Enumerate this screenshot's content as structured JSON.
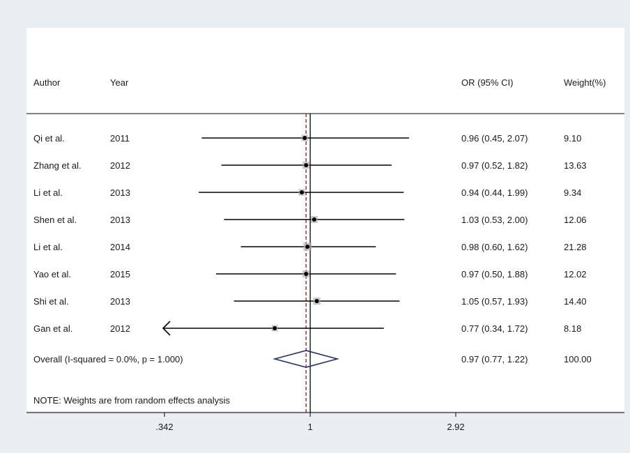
{
  "headers": {
    "author": "Author",
    "year": "Year",
    "or": "OR (95% CI)",
    "weight": "Weight(%)"
  },
  "studies": [
    {
      "author": "Qi et al.",
      "year": "2011",
      "or_text": "0.96 (0.45, 2.07)",
      "weight": "9.10"
    },
    {
      "author": "Zhang et al.",
      "year": "2012",
      "or_text": "0.97 (0.52, 1.82)",
      "weight": "13.63"
    },
    {
      "author": "Li et al.",
      "year": "2013",
      "or_text": "0.94 (0.44, 1.99)",
      "weight": "9.34"
    },
    {
      "author": "Shen et al.",
      "year": "2013",
      "or_text": "1.03 (0.53, 2.00)",
      "weight": "12.06"
    },
    {
      "author": "Li et al.",
      "year": "2014",
      "or_text": "0.98 (0.60, 1.62)",
      "weight": "21.28"
    },
    {
      "author": "Yao et al.",
      "year": "2015",
      "or_text": "0.97 (0.50, 1.88)",
      "weight": "12.02"
    },
    {
      "author": "Shi et al.",
      "year": "2013",
      "or_text": "1.05 (0.57, 1.93)",
      "weight": "14.40"
    },
    {
      "author": "Gan et al.",
      "year": "2012",
      "or_text": "0.77 (0.34, 1.72)",
      "weight": "8.18"
    }
  ],
  "overall": {
    "label": "Overall  (I-squared = 0.0%, p = 1.000)",
    "or_text": "0.97 (0.77, 1.22)",
    "weight": "100.00"
  },
  "note": "NOTE: Weights are from random effects analysis",
  "colors": {
    "background": "#e9eef3",
    "panel": "#ffffff",
    "ci_line": "#000000",
    "point": "#000000",
    "weight_box": "#b0b0b0",
    "diamond": "#1f2f7a",
    "overall_line": "#8b1a1a"
  },
  "chart_data": {
    "type": "forest",
    "scale": "log",
    "null_value": 1,
    "x_ticks": [
      {
        "value": 0.342,
        "label": ".342"
      },
      {
        "value": 1,
        "label": "1"
      },
      {
        "value": 2.92,
        "label": "2.92"
      }
    ],
    "x_range": [
      0.342,
      2.92
    ],
    "series": [
      {
        "or": 0.96,
        "lo": 0.45,
        "hi": 2.07,
        "weight": 9.1
      },
      {
        "or": 0.97,
        "lo": 0.52,
        "hi": 1.82,
        "weight": 13.63
      },
      {
        "or": 0.94,
        "lo": 0.44,
        "hi": 1.99,
        "weight": 9.34
      },
      {
        "or": 1.03,
        "lo": 0.53,
        "hi": 2.0,
        "weight": 12.06
      },
      {
        "or": 0.98,
        "lo": 0.6,
        "hi": 1.62,
        "weight": 21.28
      },
      {
        "or": 0.97,
        "lo": 0.5,
        "hi": 1.88,
        "weight": 12.02
      },
      {
        "or": 1.05,
        "lo": 0.57,
        "hi": 1.93,
        "weight": 14.4
      },
      {
        "or": 0.77,
        "lo": 0.34,
        "hi": 1.72,
        "weight": 8.18
      }
    ],
    "overall": {
      "or": 0.97,
      "lo": 0.77,
      "hi": 1.22,
      "weight": 100.0
    }
  }
}
